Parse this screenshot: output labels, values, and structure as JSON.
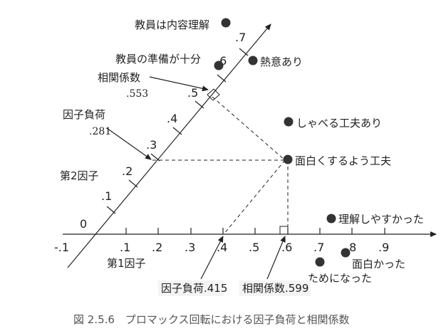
{
  "axis1": {
    "name": "第1因子",
    "ticks": [
      "-.1",
      "0",
      ".1",
      ".2",
      ".3",
      ".4",
      ".5",
      ".6",
      ".7",
      ".8",
      ".9"
    ]
  },
  "axis2": {
    "name": "第2因子",
    "ticks": [
      ".1",
      ".2",
      ".3",
      ".4",
      ".5",
      ".6",
      ".7"
    ]
  },
  "annotations": {
    "corr_axis2_label": "相関係数",
    "corr_axis2_value": ".553",
    "loading_axis2_label": "因子負荷",
    "loading_axis2_value": ".281",
    "loading_axis1": "因子負荷.415",
    "corr_axis1": "相関係数.599"
  },
  "points": [
    {
      "label": "教員は内容理解"
    },
    {
      "label": "教員の準備が十分"
    },
    {
      "label": "熱意あり"
    },
    {
      "label": "しゃべる工夫あり"
    },
    {
      "label": "面白くするよう工夫"
    },
    {
      "label": "理解しやすかった"
    },
    {
      "label": "面白かった"
    },
    {
      "label": "ためになった"
    }
  ],
  "caption": "図 2.5.6　プロマックス回転における因子負荷と相関係数"
}
